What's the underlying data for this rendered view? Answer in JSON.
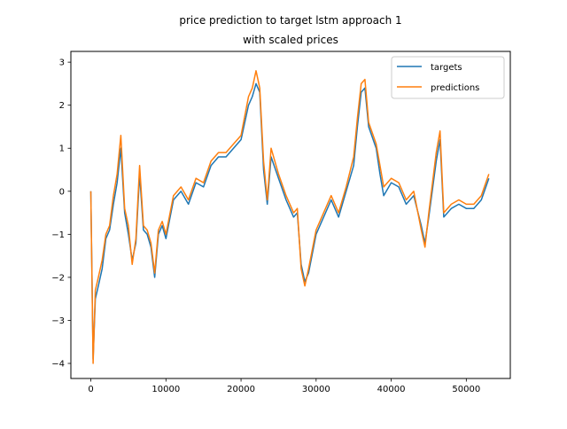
{
  "chart_data": {
    "type": "line",
    "title_lines": [
      "price prediction to target lstm approach 1",
      "with scaled prices"
    ],
    "xlabel": "",
    "ylabel": "",
    "xlim": [
      -2660,
      55860
    ],
    "ylim": [
      -4.35,
      3.25
    ],
    "x_ticks": [
      0,
      10000,
      20000,
      30000,
      40000,
      50000
    ],
    "x_tick_labels": [
      "0",
      "10000",
      "20000",
      "30000",
      "40000",
      "50000"
    ],
    "y_ticks": [
      -4,
      -3,
      -2,
      -1,
      0,
      1,
      2,
      3
    ],
    "y_tick_labels": [
      "−4",
      "−3",
      "−2",
      "−1",
      "0",
      "1",
      "2",
      "3"
    ],
    "grid": false,
    "legend": {
      "position": "top-right",
      "entries": [
        "targets",
        "predictions"
      ]
    },
    "colors": {
      "targets": "#1f77b4",
      "predictions": "#ff7f0e"
    },
    "x": [
      0,
      300,
      600,
      1000,
      1500,
      2000,
      2500,
      3000,
      3500,
      4000,
      4500,
      5000,
      5500,
      6000,
      6500,
      7000,
      7500,
      8000,
      8500,
      9000,
      9500,
      10000,
      11000,
      12000,
      13000,
      14000,
      15000,
      16000,
      17000,
      18000,
      19000,
      20000,
      21000,
      21500,
      22000,
      22500,
      23000,
      23500,
      24000,
      25000,
      26000,
      27000,
      27500,
      28000,
      28500,
      29000,
      30000,
      31000,
      32000,
      33000,
      34000,
      35000,
      35500,
      36000,
      36500,
      37000,
      38000,
      38500,
      39000,
      40000,
      41000,
      42000,
      43000,
      44000,
      44500,
      45000,
      46000,
      46500,
      47000,
      48000,
      49000,
      50000,
      51000,
      52000,
      53000
    ],
    "series": [
      {
        "name": "targets",
        "values": [
          0.0,
          -3.9,
          -2.5,
          -2.2,
          -1.8,
          -1.1,
          -0.9,
          -0.3,
          0.2,
          1.0,
          -0.5,
          -1.0,
          -1.6,
          -1.2,
          0.4,
          -0.9,
          -1.0,
          -1.3,
          -2.0,
          -1.0,
          -0.8,
          -1.1,
          -0.2,
          0.0,
          -0.3,
          0.2,
          0.1,
          0.6,
          0.8,
          0.8,
          1.0,
          1.2,
          2.0,
          2.2,
          2.5,
          2.3,
          0.5,
          -0.3,
          0.8,
          0.3,
          -0.2,
          -0.6,
          -0.5,
          -1.7,
          -2.1,
          -1.9,
          -1.0,
          -0.6,
          -0.2,
          -0.6,
          0.0,
          0.6,
          1.5,
          2.3,
          2.4,
          1.5,
          1.0,
          0.4,
          -0.1,
          0.2,
          0.1,
          -0.3,
          -0.1,
          -0.8,
          -1.2,
          -0.6,
          0.7,
          1.2,
          -0.6,
          -0.4,
          -0.3,
          -0.4,
          -0.4,
          -0.2,
          0.3
        ]
      },
      {
        "name": "predictions",
        "values": [
          0.0,
          -4.0,
          -2.3,
          -2.0,
          -1.6,
          -1.0,
          -0.8,
          -0.1,
          0.4,
          1.3,
          -0.4,
          -0.8,
          -1.7,
          -1.1,
          0.6,
          -0.8,
          -0.9,
          -1.2,
          -1.9,
          -0.9,
          -0.7,
          -1.0,
          -0.1,
          0.1,
          -0.2,
          0.3,
          0.2,
          0.7,
          0.9,
          0.9,
          1.1,
          1.3,
          2.2,
          2.4,
          2.8,
          2.4,
          0.7,
          -0.2,
          1.0,
          0.4,
          -0.1,
          -0.5,
          -0.4,
          -1.8,
          -2.2,
          -1.8,
          -0.9,
          -0.5,
          -0.1,
          -0.5,
          0.1,
          0.8,
          1.7,
          2.5,
          2.6,
          1.6,
          1.1,
          0.6,
          0.1,
          0.3,
          0.2,
          -0.2,
          0.0,
          -0.9,
          -1.3,
          -0.5,
          0.9,
          1.4,
          -0.5,
          -0.3,
          -0.2,
          -0.3,
          -0.3,
          -0.1,
          0.4
        ]
      }
    ]
  }
}
